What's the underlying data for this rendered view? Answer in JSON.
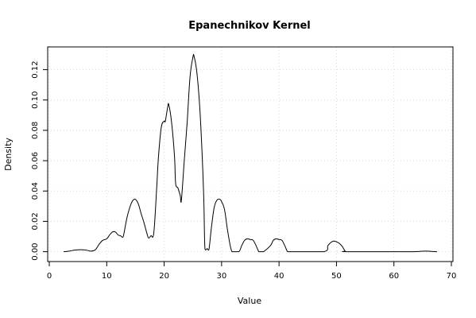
{
  "chart_data": {
    "type": "line",
    "title": "Epanechnikov Kernel",
    "xlabel": "Value",
    "ylabel": "Density",
    "xlim": [
      0,
      70
    ],
    "ylim": [
      -0.0065,
      0.135
    ],
    "x_ticks": [
      0,
      10,
      20,
      30,
      40,
      50,
      60,
      70
    ],
    "x_tick_labels": [
      "0",
      "10",
      "20",
      "30",
      "40",
      "50",
      "60",
      "70"
    ],
    "y_ticks": [
      0.0,
      0.02,
      0.04,
      0.06,
      0.08,
      0.1,
      0.12
    ],
    "y_tick_labels": [
      "0.00",
      "0.02",
      "0.04",
      "0.06",
      "0.08",
      "0.10",
      "0.12"
    ],
    "grid": true,
    "series": [
      {
        "color": "#000000",
        "x": [
          2.5,
          3.5,
          4.5,
          5.5,
          6.5,
          7.2,
          8.0,
          8.7,
          9.3,
          10.0,
          10.5,
          11.0,
          11.5,
          12.0,
          12.4,
          12.8,
          13.0,
          13.5,
          14.0,
          14.5,
          15.0,
          15.5,
          16.0,
          16.5,
          17.0,
          17.3,
          17.7,
          18.2,
          18.7,
          19.0,
          19.5,
          20.0,
          20.2,
          20.6,
          20.8,
          21.3,
          21.8,
          22.0,
          22.4,
          22.8,
          23.0,
          23.5,
          24.0,
          24.5,
          25.0,
          25.2,
          25.7,
          26.2,
          26.6,
          26.9,
          27.1,
          27.5,
          27.8,
          28.2,
          28.7,
          29.2,
          29.7,
          30.0,
          30.5,
          31.0,
          31.5,
          31.8,
          32.0,
          33.0,
          33.5,
          34.0,
          34.5,
          35.0,
          35.5,
          36.0,
          36.5,
          37.0,
          37.3,
          38.5,
          39.0,
          39.5,
          40.0,
          40.5,
          41.0,
          41.5,
          42.0,
          42.5,
          47.8,
          48.5,
          49.0,
          49.5,
          50.0,
          50.5,
          51.0,
          51.5,
          52.0,
          62.5,
          63.5,
          64.5,
          65.5,
          66.5,
          67.5
        ],
        "y": [
          0.0,
          0.0004,
          0.0011,
          0.0013,
          0.001,
          0.0004,
          0.0012,
          0.005,
          0.0075,
          0.0085,
          0.011,
          0.013,
          0.013,
          0.011,
          0.0105,
          0.0095,
          0.012,
          0.022,
          0.029,
          0.0335,
          0.0345,
          0.0315,
          0.025,
          0.019,
          0.012,
          0.009,
          0.0105,
          0.0125,
          0.042,
          0.062,
          0.082,
          0.086,
          0.086,
          0.095,
          0.097,
          0.085,
          0.063,
          0.045,
          0.042,
          0.037,
          0.034,
          0.06,
          0.085,
          0.115,
          0.128,
          0.129,
          0.118,
          0.095,
          0.065,
          0.035,
          0.002,
          0.002,
          0.0015,
          0.015,
          0.029,
          0.034,
          0.0345,
          0.033,
          0.028,
          0.015,
          0.004,
          0.0,
          0.0,
          0.0,
          0.004,
          0.0075,
          0.0085,
          0.008,
          0.0075,
          0.004,
          0.0,
          0.0,
          0.0,
          0.004,
          0.0075,
          0.0085,
          0.008,
          0.0075,
          0.004,
          0.0,
          0.0,
          0.0,
          0.0,
          0.004,
          0.006,
          0.007,
          0.0065,
          0.0055,
          0.0035,
          0.0005,
          0.0,
          0.0,
          0.0,
          0.0002,
          0.0004,
          0.0002,
          0.0
        ]
      }
    ]
  }
}
